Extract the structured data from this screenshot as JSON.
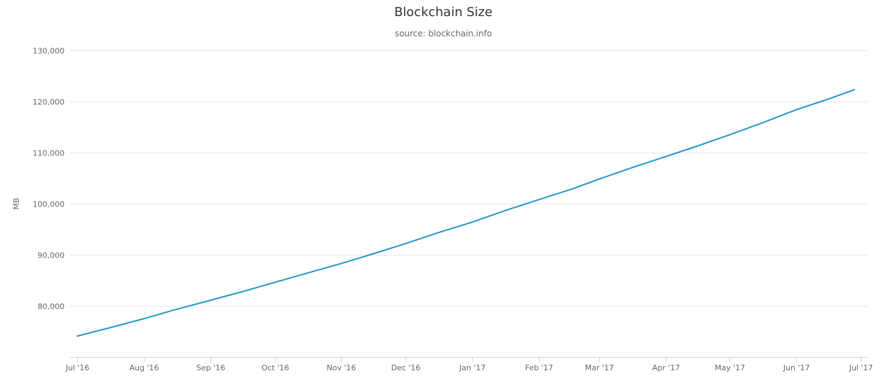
{
  "chart_data": {
    "type": "line",
    "title": "Blockchain Size",
    "subtitle": "source: blockchain.info",
    "ylabel": "MB",
    "xlabel": "",
    "ylim": [
      70000,
      130000
    ],
    "yticks": [
      80000,
      90000,
      100000,
      110000,
      120000,
      130000
    ],
    "ytick_labels": [
      "80,000",
      "90,000",
      "100,000",
      "110,000",
      "120,000",
      "130,000"
    ],
    "xlim": [
      "2016-07-01",
      "2017-07-01"
    ],
    "xticks": [
      "2016-07-01",
      "2016-08-01",
      "2016-09-01",
      "2016-10-01",
      "2016-11-01",
      "2016-12-01",
      "2017-01-01",
      "2017-02-01",
      "2017-03-01",
      "2017-04-01",
      "2017-05-01",
      "2017-06-01",
      "2017-07-01"
    ],
    "xtick_labels": [
      "Jul '16",
      "Aug '16",
      "Sep '16",
      "Oct '16",
      "Nov '16",
      "Dec '16",
      "Jan '17",
      "Feb '17",
      "Mar '17",
      "Apr '17",
      "May '17",
      "Jun '17",
      "Jul '17"
    ],
    "grid": true,
    "legend": "none",
    "series": [
      {
        "color": "#1f97c9",
        "points": [
          [
            "2016-07-01",
            74100
          ],
          [
            "2016-07-16",
            75700
          ],
          [
            "2016-08-01",
            77500
          ],
          [
            "2016-08-16",
            79300
          ],
          [
            "2016-09-01",
            81100
          ],
          [
            "2016-09-16",
            82800
          ],
          [
            "2016-10-01",
            84600
          ],
          [
            "2016-10-16",
            86400
          ],
          [
            "2016-11-01",
            88300
          ],
          [
            "2016-11-16",
            90200
          ],
          [
            "2016-12-01",
            92200
          ],
          [
            "2016-12-16",
            94300
          ],
          [
            "2017-01-01",
            96400
          ],
          [
            "2017-01-16",
            98600
          ],
          [
            "2017-02-01",
            100800
          ],
          [
            "2017-02-16",
            102800
          ],
          [
            "2017-03-01",
            104800
          ],
          [
            "2017-03-16",
            107000
          ],
          [
            "2017-04-01",
            109200
          ],
          [
            "2017-04-16",
            111300
          ],
          [
            "2017-05-01",
            113500
          ],
          [
            "2017-05-16",
            115800
          ],
          [
            "2017-06-01",
            118400
          ],
          [
            "2017-06-16",
            120500
          ],
          [
            "2017-06-28",
            122300
          ]
        ]
      }
    ]
  }
}
